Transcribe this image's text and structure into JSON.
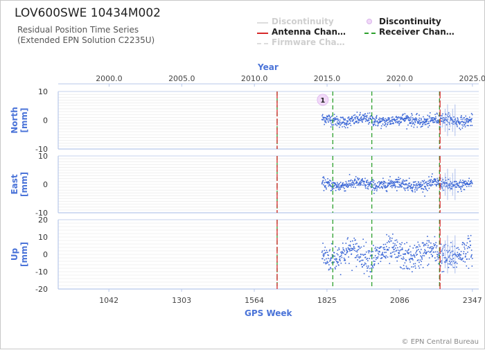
{
  "header": {
    "station": "LOV600SWE 10434M002",
    "subtitle_line1": "Residual Position Time Series",
    "subtitle_line2": "(Extended EPN Solution C2235U)"
  },
  "legend": [
    {
      "label": "Discontinuity",
      "style": "faded-line",
      "color": "#d9d9d9",
      "text_color": "#cfcfcf"
    },
    {
      "label": "Discontinuity",
      "style": "circle",
      "color": "#e9c9f3",
      "text_color": "#222222"
    },
    {
      "label": "Antenna Chan…",
      "style": "solid",
      "color": "#d62728",
      "text_color": "#222222"
    },
    {
      "label": "Receiver Chan…",
      "style": "dashed",
      "color": "#2ca02c",
      "text_color": "#222222"
    },
    {
      "label": "Firmware Cha…",
      "style": "faded-dashed",
      "color": "#d9d9d9",
      "text_color": "#cfcfcf"
    }
  ],
  "colors": {
    "series": "#3a66d6",
    "axis_label": "#4a73d8",
    "grid": "#e6e6e6",
    "antenna": "#d62728",
    "receiver": "#2ca02c"
  },
  "copyright": "© EPN Central Bureau",
  "chart_data": {
    "type": "scatter",
    "x_axis_bottom": {
      "label": "GPS Week",
      "ticks": [
        1042,
        1303,
        1564,
        1825,
        2086,
        2347
      ],
      "range": [
        860,
        2370
      ]
    },
    "x_axis_top": {
      "label": "Year",
      "ticks": [
        "2000.0",
        "2005.0",
        "2010.0",
        "2015.0",
        "2020.0",
        "2025.0"
      ]
    },
    "data_span_weeks": [
      1805,
      2345
    ],
    "antenna_changes_week": [
      1646,
      2231
    ],
    "receiver_changes_week": [
      1646,
      1846,
      1986,
      2229
    ],
    "discontinuity_marker": {
      "week": 1800,
      "label": "1"
    },
    "panels": [
      {
        "name": "North",
        "ylabel": "North [mm]",
        "ylim": [
          -10,
          10
        ],
        "yticks": [
          10,
          0,
          -10
        ],
        "scatter_sd": 1.0
      },
      {
        "name": "East",
        "ylabel": "East [mm]",
        "ylim": [
          -10,
          10
        ],
        "yticks": [
          10,
          0,
          -10
        ],
        "scatter_sd": 1.0
      },
      {
        "name": "Up",
        "ylabel": "Up [mm]",
        "ylim": [
          -20,
          20
        ],
        "yticks": [
          20,
          10,
          0,
          -10,
          -20
        ],
        "scatter_sd": 4.0
      }
    ]
  }
}
